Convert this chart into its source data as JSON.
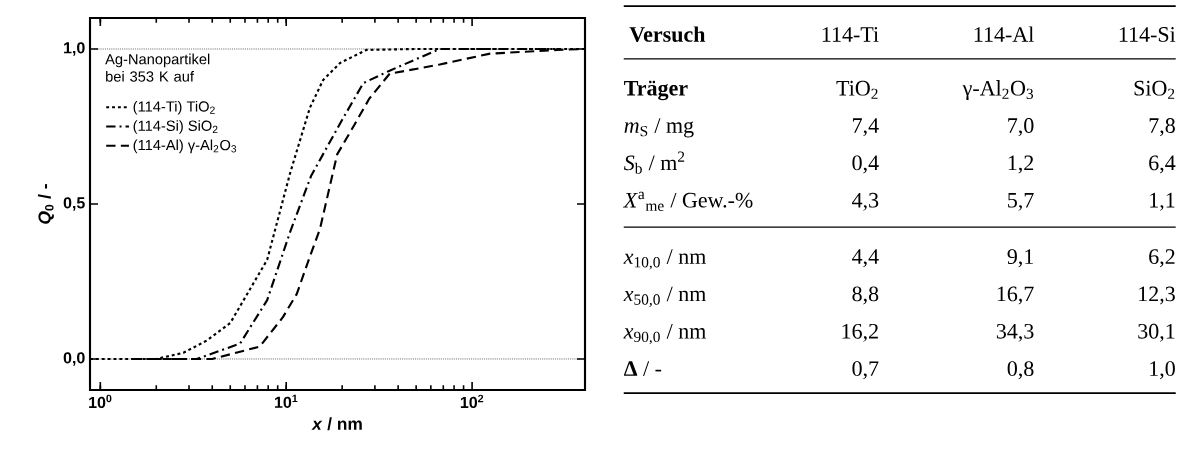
{
  "chart_data": [
    {
      "type": "line",
      "xlabel": "*x* / nm",
      "ylabel": "*Q*$_{0}$ / -",
      "legend_title": "Ag-Nanopartikel bei 353 K auf",
      "legend": "top left",
      "log": "x",
      "xlim": [
        0.88,
        405
      ],
      "xticks": [
        {
          "value": 1,
          "label": "10$^{0}$"
        },
        {
          "value": 10,
          "label": "10$^{1}$"
        },
        {
          "value": 100,
          "label": "10$^{2}$"
        }
      ],
      "ylim": [
        -0.1,
        1.1
      ],
      "yticks": [
        {
          "value": 0,
          "label": "0,0"
        },
        {
          "value": 0.5,
          "label": "0,5"
        },
        {
          "value": 1,
          "label": "1,0"
        }
      ],
      "ref_lines": [
        {
          "axis": "y",
          "value": 0,
          "line_style": "dotted"
        },
        {
          "axis": "y",
          "value": 1,
          "line_style": "dotted"
        }
      ],
      "series": [
        {
          "name": "(114-Ti) TiO$_{2}$",
          "color": "#000000",
          "line_style": "dotted",
          "x": [
            0.88,
            2,
            2.8,
            3.75,
            5.0,
            7.9,
            10.5,
            13.4,
            15.8,
            19.5,
            27,
            50,
            405
          ],
          "values": [
            0,
            0,
            0.02,
            0.06,
            0.116,
            0.32,
            0.6,
            0.81,
            0.9,
            0.955,
            0.997,
            1,
            1
          ]
        },
        {
          "name": "(114-Si) SiO$_{2}$",
          "color": "#000000",
          "line_style": "dashdot",
          "x": [
            1.5,
            3.3,
            5.65,
            7.9,
            10.5,
            13.6,
            19.5,
            26,
            36,
            67,
            300
          ],
          "values": [
            0,
            0,
            0.05,
            0.19,
            0.41,
            0.59,
            0.76,
            0.89,
            0.93,
            1,
            1
          ]
        },
        {
          "name": "(114-Al) γ-Al$_{2}$O$_{3}$",
          "color": "#000000",
          "line_style": "dashed",
          "x": [
            1.8,
            4,
            7.2,
            9.6,
            11.4,
            13.4,
            15.2,
            18.8,
            23,
            28,
            36,
            67,
            125,
            287,
            405
          ],
          "values": [
            0,
            0,
            0.04,
            0.135,
            0.21,
            0.33,
            0.42,
            0.66,
            0.75,
            0.84,
            0.92,
            0.95,
            0.985,
            0.997,
            1
          ]
        }
      ]
    },
    {
      "type": "other",
      "categories": [
        "Versuch",
        "114-Ti",
        "114-Al",
        "114-Si"
      ],
      "annotations": [
        "**Träger**",
        "TiO$_{2}$",
        "γ-Al$_{2}$O$_{3}$",
        "SiO$_{2}$",
        "*m*$_{S}$ / mg",
        "7,4",
        "7,0",
        "7,8",
        "*S*$_{b}$ / m$^{2}$",
        "0,4",
        "1,2",
        "6,4",
        "*X*$^{a}$$_{me}$ / Gew.-%",
        "4,3",
        "5,7",
        "1,1",
        "*x*$_{10,0}$ / nm",
        "4,4",
        "9,1",
        "6,2",
        "*x*$_{50,0}$ / nm",
        "8,8",
        "16,7",
        "12,3",
        "*x*$_{90,0}$ / nm",
        "16,2",
        "34,3",
        "30,1",
        "**Δ** / -",
        "0,7",
        "0,8",
        "1,0"
      ]
    }
  ]
}
